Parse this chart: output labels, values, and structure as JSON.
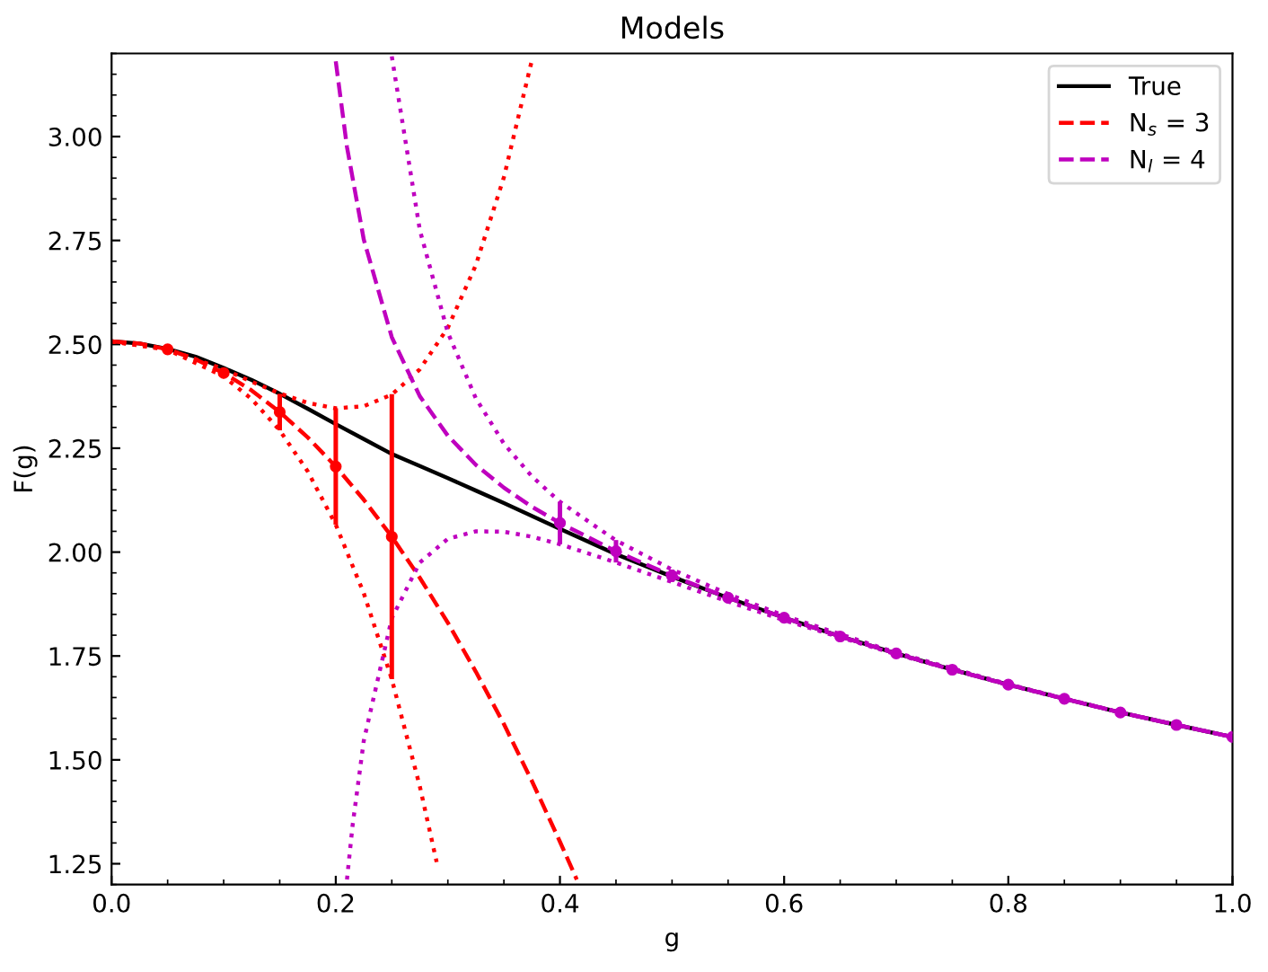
{
  "chart_data": {
    "type": "line",
    "title": "Models",
    "xlabel": "g",
    "ylabel": "F(g)",
    "xlim": [
      0,
      1
    ],
    "ylim": [
      1.2,
      3.2
    ],
    "xticks": [
      {
        "value": 0,
        "label": "0.0"
      },
      0.2,
      0.4,
      0.6,
      0.8,
      {
        "value": 1,
        "label": "1.0"
      }
    ],
    "yticks": [
      1.25,
      {
        "value": 1.5,
        "label": "1.50"
      },
      1.75,
      {
        "value": 2,
        "label": "2.00"
      },
      2.25,
      {
        "value": 2.5,
        "label": "2.50"
      },
      2.75,
      {
        "value": 3,
        "label": "3.00"
      }
    ],
    "grid": false,
    "legend": "top right",
    "series": [
      {
        "name": "True",
        "color": "#000000",
        "line_style": "solid",
        "x": [
          0,
          0.025,
          0.05,
          0.075,
          0.1,
          0.125,
          0.15,
          0.175,
          0.2,
          0.225,
          0.25,
          0.275,
          0.3,
          0.325,
          0.35,
          0.4,
          0.45,
          0.5,
          0.55,
          0.6,
          0.65,
          0.7,
          0.75,
          0.8,
          0.85,
          0.9,
          0.95,
          1.0
        ],
        "values": [
          2.507,
          2.502,
          2.489,
          2.47,
          2.443,
          2.414,
          2.381,
          2.345,
          2.308,
          2.272,
          2.236,
          2.207,
          2.178,
          2.148,
          2.118,
          2.056,
          1.995,
          1.941,
          1.89,
          1.842,
          1.797,
          1.756,
          1.717,
          1.681,
          1.647,
          1.614,
          1.584,
          1.555
        ]
      },
      {
        "name": "N$_{s}$ = 3",
        "color": "#ff0000",
        "line_style": "dashed",
        "x": [
          0,
          0.025,
          0.05,
          0.075,
          0.1,
          0.125,
          0.15,
          0.175,
          0.2,
          0.225,
          0.25,
          0.275,
          0.3,
          0.325,
          0.35,
          0.375,
          0.4,
          0.415
        ],
        "values": [
          2.507,
          2.502,
          2.488,
          2.464,
          2.431,
          2.389,
          2.337,
          2.276,
          2.206,
          2.126,
          2.037,
          1.938,
          1.83,
          1.712,
          1.586,
          1.449,
          1.303,
          1.212
        ]
      },
      {
        "color": "#ff0000",
        "line_style": "dotted",
        "x": [
          0,
          0.05,
          0.1,
          0.125,
          0.15,
          0.175,
          0.2,
          0.225,
          0.25,
          0.275,
          0.3,
          0.325,
          0.35,
          0.375
        ],
        "values": [
          2.507,
          2.488,
          2.44,
          2.41,
          2.382,
          2.359,
          2.346,
          2.351,
          2.379,
          2.44,
          2.54,
          2.691,
          2.902,
          3.184
        ]
      },
      {
        "color": "#ff0000",
        "line_style": "dotted",
        "x": [
          0,
          0.05,
          0.1,
          0.125,
          0.15,
          0.175,
          0.2,
          0.225,
          0.25,
          0.275,
          0.29
        ],
        "values": [
          2.507,
          2.487,
          2.423,
          2.368,
          2.293,
          2.194,
          2.066,
          1.901,
          1.694,
          1.436,
          1.254
        ]
      },
      {
        "type": "scatter",
        "color": "#ff0000",
        "marker": "circle",
        "x": [
          0.05,
          0.1,
          0.15,
          0.2,
          0.25
        ],
        "values": [
          2.488,
          2.431,
          2.337,
          2.206,
          2.037
        ],
        "errors": [
          null,
          0.009,
          0.044,
          0.14,
          0.343
        ]
      },
      {
        "name": "N$_{l}$ = 4",
        "color": "#bf00bf",
        "line_style": "dashed",
        "x": [
          0.2,
          0.21,
          0.225,
          0.25,
          0.275,
          0.3,
          0.325,
          0.35,
          0.375,
          0.4,
          0.45,
          0.5,
          0.55,
          0.6,
          0.65,
          0.7,
          0.75,
          0.8,
          0.85,
          0.9,
          0.95,
          1.0
        ],
        "values": [
          3.181,
          2.975,
          2.752,
          2.517,
          2.375,
          2.28,
          2.21,
          2.155,
          2.109,
          2.07,
          2.002,
          1.943,
          1.89,
          1.842,
          1.797,
          1.756,
          1.717,
          1.681,
          1.647,
          1.614,
          1.584,
          1.555
        ]
      },
      {
        "color": "#bf00bf",
        "line_style": "dotted",
        "x": [
          0.25,
          0.275,
          0.3,
          0.325,
          0.35,
          0.375,
          0.4,
          0.45,
          0.5,
          0.55,
          0.6,
          0.7,
          0.8,
          0.9,
          1.0
        ],
        "values": [
          3.193,
          2.775,
          2.528,
          2.37,
          2.261,
          2.182,
          2.121,
          2.028,
          1.958,
          1.899,
          1.847,
          1.758,
          1.682,
          1.614,
          1.555
        ]
      },
      {
        "color": "#bf00bf",
        "line_style": "dotted",
        "x": [
          0.21,
          0.215,
          0.225,
          0.25,
          0.275,
          0.3,
          0.325,
          0.35,
          0.375,
          0.4,
          0.45,
          0.5,
          0.55,
          0.6,
          0.7,
          0.8,
          0.9,
          1.0
        ],
        "values": [
          1.212,
          1.342,
          1.546,
          1.841,
          1.975,
          2.032,
          2.05,
          2.049,
          2.037,
          2.019,
          1.975,
          1.928,
          1.881,
          1.836,
          1.754,
          1.68,
          1.614,
          1.555
        ]
      },
      {
        "type": "scatter",
        "color": "#bf00bf",
        "marker": "circle",
        "x": [
          0.4,
          0.45,
          0.5,
          0.55,
          0.6,
          0.65,
          0.7,
          0.75,
          0.8,
          0.85,
          0.9,
          0.95,
          1.0
        ],
        "values": [
          2.07,
          2.002,
          1.943,
          1.89,
          1.842,
          1.797,
          1.756,
          1.717,
          1.681,
          1.647,
          1.614,
          1.584,
          1.555
        ],
        "errors": [
          0.051,
          0.027,
          0.015,
          null,
          null,
          null,
          null,
          null,
          null,
          null,
          null,
          null,
          null
        ]
      }
    ]
  }
}
